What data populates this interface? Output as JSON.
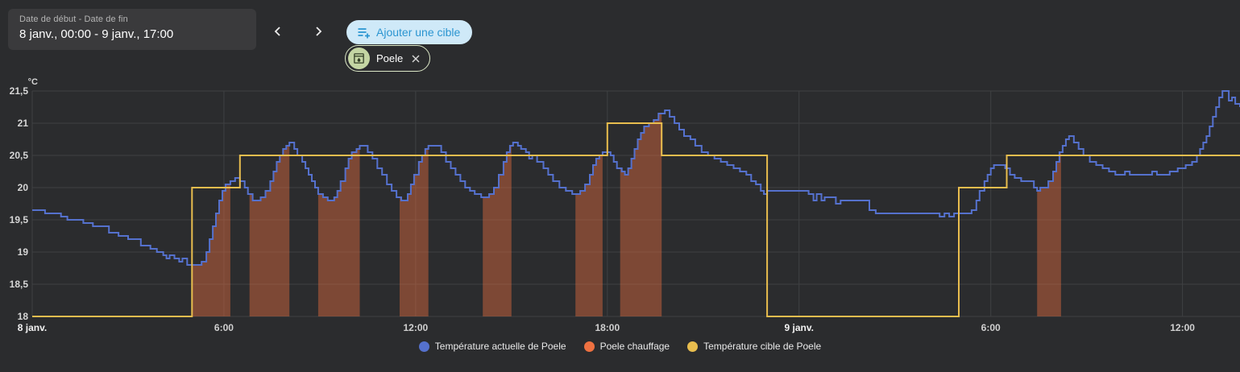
{
  "toolbar": {
    "date_field": {
      "label": "Date de début - Date de fin",
      "value": "8 janv., 00:00 - 9 janv., 17:00"
    },
    "add_target_button": "Ajouter une cible",
    "device_chip": {
      "label": "Poele"
    }
  },
  "colors": {
    "background": "#2b2c2e",
    "panel": "#3a3a3c",
    "gridline": "#3f4143",
    "axis_text": "#d6d6d6",
    "add_button_bg": "#cfe9f8",
    "add_button_text": "#2b95d1",
    "chip_border": "#dce8c7",
    "chip_avatar_bg": "#c4d5a3",
    "actual_line": "#5571cd",
    "heating_fill": "#ee7141",
    "target_line": "#e8bd4e"
  },
  "chart_data": {
    "type": "line",
    "title": "",
    "y_axis": {
      "unit": "°C",
      "min": 18,
      "max": 21.5,
      "step": 0.5,
      "tick_labels": [
        "21,5",
        "21",
        "20,5",
        "20",
        "19,5",
        "19",
        "18,5",
        "18"
      ]
    },
    "x_axis": {
      "range_hours": [
        0,
        37.8
      ],
      "ticks": [
        {
          "hour": 0,
          "label": "8 janv.",
          "is_date": true
        },
        {
          "hour": 6,
          "label": "6:00"
        },
        {
          "hour": 12,
          "label": "12:00"
        },
        {
          "hour": 18,
          "label": "18:00"
        },
        {
          "hour": 24,
          "label": "9 janv.",
          "is_date": true
        },
        {
          "hour": 30,
          "label": "6:00"
        },
        {
          "hour": 36,
          "label": "12:00"
        }
      ]
    },
    "legend_position": "bottom",
    "grid": true,
    "series": [
      {
        "name": "Température actuelle de Poele",
        "type": "step-line",
        "color": "#5571cd",
        "points": [
          [
            0,
            19.65
          ],
          [
            0.4,
            19.6
          ],
          [
            0.9,
            19.55
          ],
          [
            1.1,
            19.5
          ],
          [
            1.6,
            19.45
          ],
          [
            1.9,
            19.4
          ],
          [
            2.4,
            19.3
          ],
          [
            2.7,
            19.25
          ],
          [
            3.0,
            19.2
          ],
          [
            3.4,
            19.1
          ],
          [
            3.7,
            19.05
          ],
          [
            3.9,
            19.0
          ],
          [
            4.1,
            18.95
          ],
          [
            4.2,
            18.9
          ],
          [
            4.3,
            18.95
          ],
          [
            4.45,
            18.9
          ],
          [
            4.6,
            18.85
          ],
          [
            4.7,
            18.9
          ],
          [
            4.85,
            18.8
          ],
          [
            5.3,
            18.85
          ],
          [
            5.45,
            19.0
          ],
          [
            5.55,
            19.2
          ],
          [
            5.65,
            19.4
          ],
          [
            5.75,
            19.6
          ],
          [
            5.85,
            19.8
          ],
          [
            5.95,
            19.95
          ],
          [
            6.05,
            20.05
          ],
          [
            6.2,
            20.1
          ],
          [
            6.35,
            20.15
          ],
          [
            6.5,
            20.1
          ],
          [
            6.65,
            20.0
          ],
          [
            6.75,
            19.9
          ],
          [
            6.9,
            19.8
          ],
          [
            7.15,
            19.85
          ],
          [
            7.3,
            19.95
          ],
          [
            7.45,
            20.1
          ],
          [
            7.55,
            20.25
          ],
          [
            7.65,
            20.4
          ],
          [
            7.75,
            20.5
          ],
          [
            7.85,
            20.6
          ],
          [
            7.95,
            20.65
          ],
          [
            8.05,
            20.7
          ],
          [
            8.2,
            20.6
          ],
          [
            8.3,
            20.5
          ],
          [
            8.45,
            20.4
          ],
          [
            8.55,
            20.3
          ],
          [
            8.65,
            20.2
          ],
          [
            8.75,
            20.1
          ],
          [
            8.85,
            20.0
          ],
          [
            8.95,
            19.9
          ],
          [
            9.1,
            19.85
          ],
          [
            9.25,
            19.8
          ],
          [
            9.45,
            19.85
          ],
          [
            9.55,
            19.95
          ],
          [
            9.65,
            20.1
          ],
          [
            9.8,
            20.3
          ],
          [
            9.9,
            20.45
          ],
          [
            10.0,
            20.55
          ],
          [
            10.15,
            20.6
          ],
          [
            10.25,
            20.65
          ],
          [
            10.5,
            20.55
          ],
          [
            10.65,
            20.45
          ],
          [
            10.8,
            20.3
          ],
          [
            10.95,
            20.2
          ],
          [
            11.1,
            20.05
          ],
          [
            11.25,
            19.95
          ],
          [
            11.4,
            19.85
          ],
          [
            11.55,
            19.8
          ],
          [
            11.75,
            19.9
          ],
          [
            11.85,
            20.05
          ],
          [
            11.95,
            20.2
          ],
          [
            12.1,
            20.4
          ],
          [
            12.2,
            20.5
          ],
          [
            12.3,
            20.6
          ],
          [
            12.4,
            20.65
          ],
          [
            12.8,
            20.55
          ],
          [
            12.95,
            20.4
          ],
          [
            13.1,
            20.3
          ],
          [
            13.25,
            20.2
          ],
          [
            13.4,
            20.1
          ],
          [
            13.55,
            20.0
          ],
          [
            13.7,
            19.95
          ],
          [
            13.85,
            19.9
          ],
          [
            14.05,
            19.85
          ],
          [
            14.3,
            19.9
          ],
          [
            14.45,
            20.0
          ],
          [
            14.6,
            20.2
          ],
          [
            14.75,
            20.4
          ],
          [
            14.85,
            20.55
          ],
          [
            14.95,
            20.65
          ],
          [
            15.05,
            20.7
          ],
          [
            15.2,
            20.65
          ],
          [
            15.3,
            20.6
          ],
          [
            15.45,
            20.55
          ],
          [
            15.55,
            20.45
          ],
          [
            15.65,
            20.5
          ],
          [
            15.8,
            20.4
          ],
          [
            16.0,
            20.3
          ],
          [
            16.15,
            20.2
          ],
          [
            16.3,
            20.1
          ],
          [
            16.5,
            20.0
          ],
          [
            16.7,
            19.95
          ],
          [
            16.9,
            19.9
          ],
          [
            17.15,
            19.95
          ],
          [
            17.3,
            20.05
          ],
          [
            17.45,
            20.2
          ],
          [
            17.55,
            20.35
          ],
          [
            17.65,
            20.45
          ],
          [
            17.75,
            20.5
          ],
          [
            17.85,
            20.55
          ],
          [
            18.1,
            20.5
          ],
          [
            18.2,
            20.4
          ],
          [
            18.3,
            20.3
          ],
          [
            18.45,
            20.25
          ],
          [
            18.55,
            20.2
          ],
          [
            18.65,
            20.3
          ],
          [
            18.75,
            20.45
          ],
          [
            18.85,
            20.6
          ],
          [
            18.95,
            20.75
          ],
          [
            19.05,
            20.85
          ],
          [
            19.15,
            20.95
          ],
          [
            19.3,
            21.0
          ],
          [
            19.45,
            21.05
          ],
          [
            19.6,
            21.15
          ],
          [
            19.8,
            21.2
          ],
          [
            19.95,
            21.1
          ],
          [
            20.1,
            21.0
          ],
          [
            20.25,
            20.9
          ],
          [
            20.4,
            20.8
          ],
          [
            20.6,
            20.75
          ],
          [
            20.75,
            20.65
          ],
          [
            20.95,
            20.55
          ],
          [
            21.15,
            20.5
          ],
          [
            21.35,
            20.45
          ],
          [
            21.55,
            20.4
          ],
          [
            21.75,
            20.35
          ],
          [
            21.95,
            20.3
          ],
          [
            22.15,
            20.25
          ],
          [
            22.35,
            20.2
          ],
          [
            22.5,
            20.1
          ],
          [
            22.65,
            20.05
          ],
          [
            22.8,
            19.95
          ],
          [
            22.9,
            19.9
          ],
          [
            23.0,
            19.95
          ],
          [
            24.3,
            19.9
          ],
          [
            24.45,
            19.8
          ],
          [
            24.55,
            19.9
          ],
          [
            24.7,
            19.8
          ],
          [
            24.8,
            19.85
          ],
          [
            25.15,
            19.75
          ],
          [
            25.3,
            19.8
          ],
          [
            26.2,
            19.65
          ],
          [
            26.4,
            19.6
          ],
          [
            28.4,
            19.55
          ],
          [
            28.55,
            19.6
          ],
          [
            28.7,
            19.55
          ],
          [
            28.85,
            19.6
          ],
          [
            29.4,
            19.65
          ],
          [
            29.55,
            19.8
          ],
          [
            29.65,
            19.95
          ],
          [
            29.8,
            20.1
          ],
          [
            29.9,
            20.2
          ],
          [
            30.0,
            20.3
          ],
          [
            30.1,
            20.35
          ],
          [
            30.45,
            20.3
          ],
          [
            30.6,
            20.2
          ],
          [
            30.75,
            20.15
          ],
          [
            30.95,
            20.1
          ],
          [
            31.35,
            20.0
          ],
          [
            31.45,
            19.95
          ],
          [
            31.55,
            20.0
          ],
          [
            31.8,
            20.1
          ],
          [
            31.95,
            20.25
          ],
          [
            32.05,
            20.4
          ],
          [
            32.15,
            20.55
          ],
          [
            32.25,
            20.65
          ],
          [
            32.35,
            20.75
          ],
          [
            32.45,
            20.8
          ],
          [
            32.6,
            20.7
          ],
          [
            32.75,
            20.6
          ],
          [
            32.9,
            20.5
          ],
          [
            33.1,
            20.4
          ],
          [
            33.3,
            20.35
          ],
          [
            33.5,
            20.3
          ],
          [
            33.7,
            20.25
          ],
          [
            33.9,
            20.2
          ],
          [
            34.2,
            20.25
          ],
          [
            34.35,
            20.2
          ],
          [
            35.05,
            20.25
          ],
          [
            35.2,
            20.2
          ],
          [
            35.6,
            20.25
          ],
          [
            35.85,
            20.3
          ],
          [
            36.1,
            20.35
          ],
          [
            36.3,
            20.4
          ],
          [
            36.45,
            20.5
          ],
          [
            36.55,
            20.6
          ],
          [
            36.65,
            20.7
          ],
          [
            36.75,
            20.8
          ],
          [
            36.85,
            20.95
          ],
          [
            36.95,
            21.1
          ],
          [
            37.05,
            21.25
          ],
          [
            37.15,
            21.4
          ],
          [
            37.25,
            21.5
          ],
          [
            37.45,
            21.35
          ],
          [
            37.55,
            21.4
          ],
          [
            37.65,
            21.3
          ],
          [
            37.8,
            21.25
          ]
        ]
      },
      {
        "name": "Poele chauffage",
        "type": "area-under-actual",
        "color": "#ee7141",
        "fill_opacity": 0.42,
        "intervals_hours": [
          [
            5.0,
            6.2
          ],
          [
            6.8,
            8.05
          ],
          [
            8.95,
            10.25
          ],
          [
            11.5,
            12.4
          ],
          [
            14.1,
            15.0
          ],
          [
            17.0,
            17.85
          ],
          [
            18.4,
            19.7
          ],
          [
            31.45,
            32.2
          ]
        ]
      },
      {
        "name": "Température cible de Poele",
        "type": "step-line",
        "color": "#e8bd4e",
        "points": [
          [
            0,
            18
          ],
          [
            5.0,
            20
          ],
          [
            6.5,
            20.5
          ],
          [
            18.0,
            21
          ],
          [
            19.7,
            20.5
          ],
          [
            23.0,
            18
          ],
          [
            29.0,
            20
          ],
          [
            30.5,
            20.5
          ],
          [
            37.8,
            20.5
          ]
        ]
      }
    ]
  }
}
